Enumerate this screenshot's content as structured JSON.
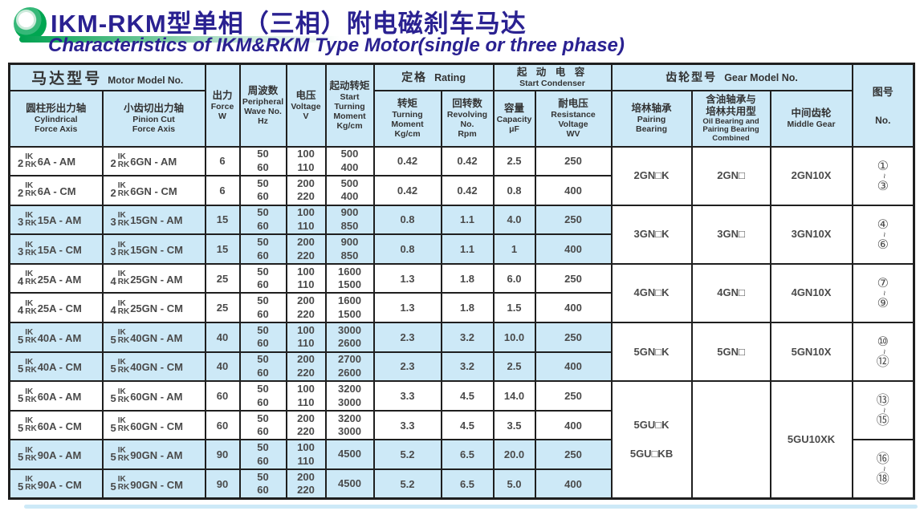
{
  "page": {
    "title_cn": "IKM-RKM型单相（三相）附电磁刹车马达",
    "subtitle_en": "Characteristics of IKM&RKM Type Motor(single or three phase)"
  },
  "colors": {
    "title_text": "#2a2191",
    "header_bg": "#cde9f7",
    "shaded_row_bg": "#cde9f7",
    "table_border": "#1f1f1f",
    "logo_green": "#00a651"
  },
  "table": {
    "header": {
      "motor_model_cn": "马达型号",
      "motor_model_en": "Motor Model No.",
      "cylindrical_cn": "圆柱形出力轴",
      "cylindrical_en": "Cylindrical\nForce Axis",
      "pinion_cn": "小齿切出力轴",
      "pinion_en": "Pinion Cut\nForce Axis",
      "force_cn": "出力",
      "force_en": "Force\nW",
      "frequency_cn": "周波数",
      "frequency_en": "Peripheral\nWave No.\nHz",
      "voltage_cn": "电压",
      "voltage_en": "Voltage\nV",
      "start_moment_cn": "起动转矩",
      "start_moment_en": "Start\nTurning\nMoment\nKg/cm",
      "rating_cn": "定格",
      "rating_en": "Rating",
      "turning_moment_cn": "转矩",
      "turning_moment_en": "Turning\nMoment\nKg/cm",
      "revolving_cn": "回转数",
      "revolving_en": "Revolving\nNo.\nRpm",
      "condenser_cn": "起 动 电 容",
      "condenser_en": "Start Condenser",
      "capacity_cn": "容量",
      "capacity_en": "Capacity\nμF",
      "resistance_cn": "耐电压",
      "resistance_en": "Resistance\nVoltage\nWV",
      "gear_cn": "齿轮型号",
      "gear_en": "Gear Model No.",
      "pairing_cn": "培林轴承",
      "pairing_en": "Pairing\nBearing",
      "oil_cn": "含油轴承与\n培林共用型",
      "oil_en": "Oil Bearing and\nPairing Bearing\nCombined",
      "middle_cn": "中间齿轮",
      "middle_en": "Middle Gear",
      "figure_cn": "图号",
      "figure_en": "No."
    },
    "fig_separator": "~",
    "rows": [
      {
        "shaded": false,
        "cyl": {
          "n": "2",
          "u": "IK",
          "l": "RK",
          "s": "6A - AM"
        },
        "pin": {
          "n": "2",
          "u": "IK",
          "l": "RK",
          "s": "6GN - AM"
        },
        "force": "6",
        "hz": [
          "50",
          "60"
        ],
        "volt": [
          "100",
          "110"
        ],
        "start": [
          "500",
          "400"
        ],
        "tm": "0.42",
        "rev": "0.42",
        "cap": "2.5",
        "res": "250"
      },
      {
        "shaded": false,
        "cyl": {
          "n": "2",
          "u": "IK",
          "l": "RK",
          "s": "6A - CM"
        },
        "pin": {
          "n": "2",
          "u": "IK",
          "l": "RK",
          "s": "6GN - CM"
        },
        "force": "6",
        "hz": [
          "50",
          "60"
        ],
        "volt": [
          "200",
          "220"
        ],
        "start": [
          "500",
          "400"
        ],
        "tm": "0.42",
        "rev": "0.42",
        "cap": "0.8",
        "res": "400"
      },
      {
        "shaded": true,
        "cyl": {
          "n": "3",
          "u": "IK",
          "l": "RK",
          "s": "15A - AM"
        },
        "pin": {
          "n": "3",
          "u": "IK",
          "l": "RK",
          "s": "15GN - AM"
        },
        "force": "15",
        "hz": [
          "50",
          "60"
        ],
        "volt": [
          "100",
          "110"
        ],
        "start": [
          "900",
          "850"
        ],
        "tm": "0.8",
        "rev": "1.1",
        "cap": "4.0",
        "res": "250"
      },
      {
        "shaded": true,
        "cyl": {
          "n": "3",
          "u": "IK",
          "l": "RK",
          "s": "15A - CM"
        },
        "pin": {
          "n": "3",
          "u": "IK",
          "l": "RK",
          "s": "15GN - CM"
        },
        "force": "15",
        "hz": [
          "50",
          "60"
        ],
        "volt": [
          "200",
          "220"
        ],
        "start": [
          "900",
          "850"
        ],
        "tm": "0.8",
        "rev": "1.1",
        "cap": "1",
        "res": "400"
      },
      {
        "shaded": false,
        "cyl": {
          "n": "4",
          "u": "IK",
          "l": "RK",
          "s": "25A - AM"
        },
        "pin": {
          "n": "4",
          "u": "IK",
          "l": "RK",
          "s": "25GN - AM"
        },
        "force": "25",
        "hz": [
          "50",
          "60"
        ],
        "volt": [
          "100",
          "110"
        ],
        "start": [
          "1600",
          "1500"
        ],
        "tm": "1.3",
        "rev": "1.8",
        "cap": "6.0",
        "res": "250"
      },
      {
        "shaded": false,
        "cyl": {
          "n": "4",
          "u": "IK",
          "l": "RK",
          "s": "25A - CM"
        },
        "pin": {
          "n": "4",
          "u": "IK",
          "l": "RK",
          "s": "25GN - CM"
        },
        "force": "25",
        "hz": [
          "50",
          "60"
        ],
        "volt": [
          "200",
          "220"
        ],
        "start": [
          "1600",
          "1500"
        ],
        "tm": "1.3",
        "rev": "1.8",
        "cap": "1.5",
        "res": "400"
      },
      {
        "shaded": true,
        "cyl": {
          "n": "5",
          "u": "IK",
          "l": "RK",
          "s": "40A - AM"
        },
        "pin": {
          "n": "5",
          "u": "IK",
          "l": "RK",
          "s": "40GN - AM"
        },
        "force": "40",
        "hz": [
          "50",
          "60"
        ],
        "volt": [
          "100",
          "110"
        ],
        "start": [
          "3000",
          "2600"
        ],
        "tm": "2.3",
        "rev": "3.2",
        "cap": "10.0",
        "res": "250"
      },
      {
        "shaded": true,
        "cyl": {
          "n": "5",
          "u": "IK",
          "l": "RK",
          "s": "40A - CM"
        },
        "pin": {
          "n": "5",
          "u": "IK",
          "l": "RK",
          "s": "40GN - CM"
        },
        "force": "40",
        "hz": [
          "50",
          "60"
        ],
        "volt": [
          "200",
          "220"
        ],
        "start": [
          "2700",
          "2600"
        ],
        "tm": "2.3",
        "rev": "3.2",
        "cap": "2.5",
        "res": "400"
      },
      {
        "shaded": false,
        "cyl": {
          "n": "5",
          "u": "IK",
          "l": "RK",
          "s": "60A - AM"
        },
        "pin": {
          "n": "5",
          "u": "IK",
          "l": "RK",
          "s": "60GN - AM"
        },
        "force": "60",
        "hz": [
          "50",
          "60"
        ],
        "volt": [
          "100",
          "110"
        ],
        "start": [
          "3200",
          "3000"
        ],
        "tm": "3.3",
        "rev": "4.5",
        "cap": "14.0",
        "res": "250"
      },
      {
        "shaded": false,
        "cyl": {
          "n": "5",
          "u": "IK",
          "l": "RK",
          "s": "60A - CM"
        },
        "pin": {
          "n": "5",
          "u": "IK",
          "l": "RK",
          "s": "60GN - CM"
        },
        "force": "60",
        "hz": [
          "50",
          "60"
        ],
        "volt": [
          "200",
          "220"
        ],
        "start": [
          "3200",
          "3000"
        ],
        "tm": "3.3",
        "rev": "4.5",
        "cap": "3.5",
        "res": "400"
      },
      {
        "shaded": true,
        "cyl": {
          "n": "5",
          "u": "IK",
          "l": "RK",
          "s": "90A - AM"
        },
        "pin": {
          "n": "5",
          "u": "IK",
          "l": "RK",
          "s": "90GN - AM"
        },
        "force": "90",
        "hz": [
          "50",
          "60"
        ],
        "volt": [
          "100",
          "110"
        ],
        "start": [
          "4500"
        ],
        "tm": "5.2",
        "rev": "6.5",
        "cap": "20.0",
        "res": "250"
      },
      {
        "shaded": true,
        "cyl": {
          "n": "5",
          "u": "IK",
          "l": "RK",
          "s": "90A - CM"
        },
        "pin": {
          "n": "5",
          "u": "IK",
          "l": "RK",
          "s": "90GN - CM"
        },
        "force": "90",
        "hz": [
          "50",
          "60"
        ],
        "volt": [
          "200",
          "220"
        ],
        "start": [
          "4500"
        ],
        "tm": "5.2",
        "rev": "6.5",
        "cap": "5.0",
        "res": "400"
      }
    ],
    "gear_blocks": [
      {
        "row": 0,
        "span": 2,
        "pairing": [
          "2GN□K"
        ],
        "oil": [
          "2GN□"
        ],
        "middle": [
          "2GN10X"
        ]
      },
      {
        "row": 2,
        "span": 2,
        "pairing": [
          "3GN□K"
        ],
        "oil": [
          "3GN□"
        ],
        "middle": [
          "3GN10X"
        ]
      },
      {
        "row": 4,
        "span": 2,
        "pairing": [
          "4GN□K"
        ],
        "oil": [
          "4GN□"
        ],
        "middle": [
          "4GN10X"
        ]
      },
      {
        "row": 6,
        "span": 2,
        "pairing": [
          "5GN□K"
        ],
        "oil": [
          "5GN□"
        ],
        "middle": [
          "5GN10X"
        ]
      },
      {
        "row": 8,
        "span": 4,
        "pairing": [
          "5GU□K",
          "5GU□KB"
        ],
        "oil": [],
        "middle": [
          "5GU10XK"
        ]
      }
    ],
    "fig_blocks": [
      {
        "row": 0,
        "span": 2,
        "from": "①",
        "to": "③"
      },
      {
        "row": 2,
        "span": 2,
        "from": "④",
        "to": "⑥"
      },
      {
        "row": 4,
        "span": 2,
        "from": "⑦",
        "to": "⑨"
      },
      {
        "row": 6,
        "span": 2,
        "from": "⑩",
        "to": "⑫"
      },
      {
        "row": 8,
        "span": 2,
        "from": "⑬",
        "to": "⑮"
      },
      {
        "row": 10,
        "span": 2,
        "from": "⑯",
        "to": "⑱"
      }
    ]
  }
}
